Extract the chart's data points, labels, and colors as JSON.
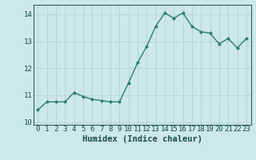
{
  "x": [
    0,
    1,
    2,
    3,
    4,
    5,
    6,
    7,
    8,
    9,
    10,
    11,
    12,
    13,
    14,
    15,
    16,
    17,
    18,
    19,
    20,
    21,
    22,
    23
  ],
  "y": [
    10.45,
    10.75,
    10.75,
    10.75,
    11.1,
    10.95,
    10.85,
    10.8,
    10.75,
    10.75,
    11.45,
    12.2,
    12.8,
    13.55,
    14.05,
    13.85,
    14.05,
    13.55,
    13.35,
    13.3,
    12.9,
    13.1,
    12.75,
    13.1
  ],
  "line_color": "#2d7d6e",
  "marker": "D",
  "marker_size": 2.0,
  "bg_color": "#cce8e8",
  "grid_color": "#b8d4d4",
  "xlabel": "Humidex (Indice chaleur)",
  "xlim": [
    -0.5,
    23.5
  ],
  "ylim": [
    9.9,
    14.35
  ],
  "yticks": [
    10,
    11,
    12,
    13,
    14
  ],
  "xlabel_fontsize": 7.5,
  "tick_fontsize": 6.5,
  "axis_color": "#2d6060",
  "tick_color": "#1a4a4a",
  "linewidth": 1.0
}
